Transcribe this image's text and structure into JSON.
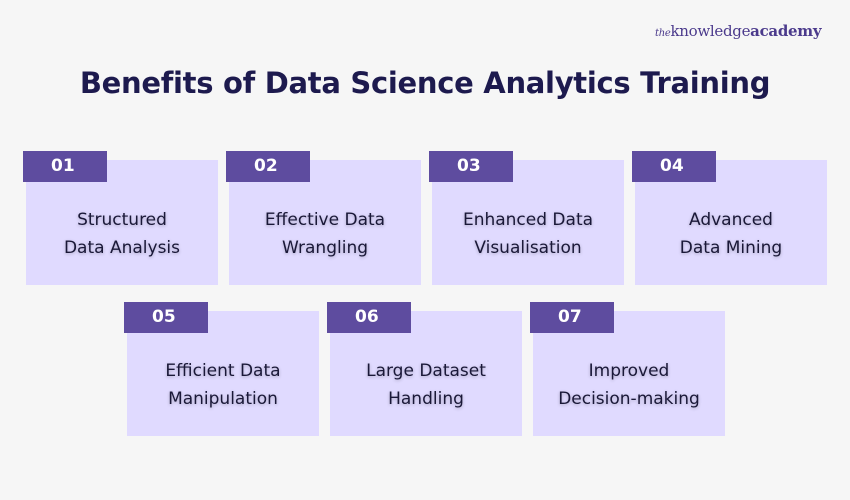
{
  "logo": {
    "the": "the",
    "knowledge": "knowledge",
    "academy": "academy"
  },
  "title": "Benefits of Data Science Analytics Training",
  "colors": {
    "background": "#f6f6f6",
    "card": "#e0daff",
    "tab": "#5e4c9f",
    "title": "#1d1a4e"
  },
  "cards": [
    {
      "num": "01",
      "line1": "Structured",
      "line2": "Data Analysis"
    },
    {
      "num": "02",
      "line1": "Effective Data",
      "line2": "Wrangling"
    },
    {
      "num": "03",
      "line1": "Enhanced Data",
      "line2": "Visualisation"
    },
    {
      "num": "04",
      "line1": "Advanced",
      "line2": "Data Mining"
    },
    {
      "num": "05",
      "line1": "Efficient Data",
      "line2": "Manipulation"
    },
    {
      "num": "06",
      "line1": "Large Dataset",
      "line2": "Handling"
    },
    {
      "num": "07",
      "line1": "Improved",
      "line2": "Decision-making"
    }
  ]
}
